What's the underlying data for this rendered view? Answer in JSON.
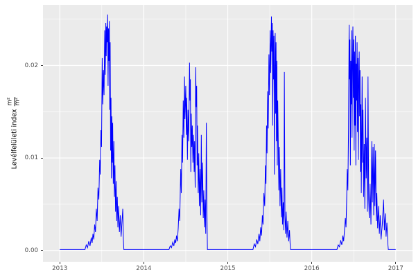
{
  "chart_data": {
    "type": "line",
    "title": "",
    "xlabel": "",
    "ylabel_text": "Levélfelületi index",
    "ylabel_unit_numerator": "m²",
    "ylabel_unit_denominator": "m²",
    "line_color": "#0000FF",
    "panel_bg": "#EBEBEB",
    "grid_color": "#FFFFFF",
    "tick_label_color": "#4D4D4D",
    "legend": "none",
    "grid": "on",
    "x_axis": {
      "range": [
        2012.8,
        2017.2
      ],
      "ticks": [
        2013,
        2014,
        2015,
        2016,
        2017
      ],
      "tick_labels": [
        "2013",
        "2014",
        "2015",
        "2016",
        "2017"
      ],
      "minor_ticks": [
        2013.5,
        2014.5,
        2015.5,
        2016.5
      ]
    },
    "y_axis": {
      "range": [
        -0.00122,
        0.02655
      ],
      "ticks": [
        0.0,
        0.01,
        0.02
      ],
      "tick_labels": [
        "0.00",
        "0.01",
        "0.02"
      ],
      "minor_ticks": [
        0.005,
        0.015,
        0.025
      ]
    },
    "series": [
      {
        "name": "Levélfelületi index",
        "points": [
          [
            2013.0,
            0.0001
          ],
          [
            2013.3,
            0.0001
          ],
          [
            2013.315,
            0.0006
          ],
          [
            2013.33,
            0.0003
          ],
          [
            2013.345,
            0.001
          ],
          [
            2013.36,
            0.0005
          ],
          [
            2013.375,
            0.0014
          ],
          [
            2013.385,
            0.0008
          ],
          [
            2013.395,
            0.0018
          ],
          [
            2013.405,
            0.0012
          ],
          [
            2013.415,
            0.0028
          ],
          [
            2013.425,
            0.002
          ],
          [
            2013.435,
            0.0045
          ],
          [
            2013.445,
            0.0032
          ],
          [
            2013.455,
            0.0068
          ],
          [
            2013.465,
            0.0055
          ],
          [
            2013.475,
            0.0098
          ],
          [
            2013.482,
            0.0082
          ],
          [
            2013.49,
            0.013
          ],
          [
            2013.497,
            0.0112
          ],
          [
            2013.505,
            0.0208
          ],
          [
            2013.512,
            0.0158
          ],
          [
            2013.52,
            0.0195
          ],
          [
            2013.527,
            0.0168
          ],
          [
            2013.535,
            0.0238
          ],
          [
            2013.541,
            0.019
          ],
          [
            2013.548,
            0.0246
          ],
          [
            2013.553,
            0.021
          ],
          [
            2013.558,
            0.0242
          ],
          [
            2013.563,
            0.0225
          ],
          [
            2013.57,
            0.0255
          ],
          [
            2013.575,
            0.0178
          ],
          [
            2013.58,
            0.024
          ],
          [
            2013.585,
            0.0205
          ],
          [
            2013.59,
            0.0248
          ],
          [
            2013.595,
            0.0152
          ],
          [
            2013.6,
            0.0225
          ],
          [
            2013.605,
            0.0108
          ],
          [
            2013.61,
            0.0165
          ],
          [
            2013.615,
            0.0078
          ],
          [
            2013.62,
            0.0145
          ],
          [
            2013.625,
            0.0095
          ],
          [
            2013.63,
            0.0138
          ],
          [
            2013.637,
            0.0072
          ],
          [
            2013.644,
            0.0118
          ],
          [
            2013.65,
            0.0058
          ],
          [
            2013.657,
            0.0092
          ],
          [
            2013.664,
            0.0042
          ],
          [
            2013.671,
            0.0075
          ],
          [
            2013.678,
            0.0032
          ],
          [
            2013.685,
            0.0058
          ],
          [
            2013.692,
            0.0025
          ],
          [
            2013.7,
            0.0048
          ],
          [
            2013.71,
            0.002
          ],
          [
            2013.72,
            0.0038
          ],
          [
            2013.73,
            0.0015
          ],
          [
            2013.74,
            0.003
          ],
          [
            2013.75,
            0.0045
          ],
          [
            2013.757,
            0.0012
          ],
          [
            2013.763,
            0.0001
          ],
          [
            2014.3,
            0.0001
          ],
          [
            2014.315,
            0.0005
          ],
          [
            2014.33,
            0.0003
          ],
          [
            2014.345,
            0.0009
          ],
          [
            2014.358,
            0.0005
          ],
          [
            2014.37,
            0.0012
          ],
          [
            2014.38,
            0.0008
          ],
          [
            2014.39,
            0.0016
          ],
          [
            2014.4,
            0.001
          ],
          [
            2014.41,
            0.0024
          ],
          [
            2014.42,
            0.0045
          ],
          [
            2014.428,
            0.0032
          ],
          [
            2014.44,
            0.0088
          ],
          [
            2014.447,
            0.0062
          ],
          [
            2014.455,
            0.0125
          ],
          [
            2014.462,
            0.0095
          ],
          [
            2014.47,
            0.0162
          ],
          [
            2014.477,
            0.0122
          ],
          [
            2014.485,
            0.0188
          ],
          [
            2014.49,
            0.0142
          ],
          [
            2014.5,
            0.0178
          ],
          [
            2014.506,
            0.0125
          ],
          [
            2014.512,
            0.0165
          ],
          [
            2014.52,
            0.0098
          ],
          [
            2014.527,
            0.0152
          ],
          [
            2014.535,
            0.0118
          ],
          [
            2014.545,
            0.0203
          ],
          [
            2014.55,
            0.0162
          ],
          [
            2014.555,
            0.0185
          ],
          [
            2014.56,
            0.0085
          ],
          [
            2014.565,
            0.0148
          ],
          [
            2014.572,
            0.0112
          ],
          [
            2014.578,
            0.0135
          ],
          [
            2014.585,
            0.0095
          ],
          [
            2014.592,
            0.0125
          ],
          [
            2014.6,
            0.0085
          ],
          [
            2014.605,
            0.0118
          ],
          [
            2014.612,
            0.0068
          ],
          [
            2014.618,
            0.0198
          ],
          [
            2014.625,
            0.0155
          ],
          [
            2014.63,
            0.0178
          ],
          [
            2014.635,
            0.0092
          ],
          [
            2014.64,
            0.0135
          ],
          [
            2014.648,
            0.0062
          ],
          [
            2014.655,
            0.0105
          ],
          [
            2014.662,
            0.0048
          ],
          [
            2014.67,
            0.0088
          ],
          [
            2014.678,
            0.0038
          ],
          [
            2014.685,
            0.0125
          ],
          [
            2014.692,
            0.0052
          ],
          [
            2014.7,
            0.0095
          ],
          [
            2014.708,
            0.0035
          ],
          [
            2014.715,
            0.0065
          ],
          [
            2014.722,
            0.0025
          ],
          [
            2014.73,
            0.0055
          ],
          [
            2014.738,
            0.0018
          ],
          [
            2014.745,
            0.0138
          ],
          [
            2014.752,
            0.0042
          ],
          [
            2014.758,
            0.0001
          ],
          [
            2015.3,
            0.0001
          ],
          [
            2015.315,
            0.0007
          ],
          [
            2015.33,
            0.0004
          ],
          [
            2015.345,
            0.0012
          ],
          [
            2015.358,
            0.0007
          ],
          [
            2015.372,
            0.0018
          ],
          [
            2015.382,
            0.001
          ],
          [
            2015.392,
            0.0025
          ],
          [
            2015.402,
            0.0016
          ],
          [
            2015.412,
            0.0038
          ],
          [
            2015.42,
            0.0028
          ],
          [
            2015.43,
            0.0062
          ],
          [
            2015.44,
            0.0048
          ],
          [
            2015.448,
            0.0092
          ],
          [
            2015.455,
            0.0072
          ],
          [
            2015.462,
            0.0135
          ],
          [
            2015.468,
            0.0105
          ],
          [
            2015.475,
            0.0172
          ],
          [
            2015.482,
            0.0132
          ],
          [
            2015.49,
            0.0212
          ],
          [
            2015.497,
            0.0168
          ],
          [
            2015.505,
            0.0238
          ],
          [
            2015.512,
            0.0192
          ],
          [
            2015.52,
            0.0253
          ],
          [
            2015.525,
            0.0215
          ],
          [
            2015.53,
            0.0246
          ],
          [
            2015.535,
            0.0135
          ],
          [
            2015.54,
            0.0238
          ],
          [
            2015.545,
            0.0185
          ],
          [
            2015.55,
            0.0232
          ],
          [
            2015.555,
            0.0082
          ],
          [
            2015.56,
            0.0198
          ],
          [
            2015.565,
            0.0235
          ],
          [
            2015.57,
            0.0148
          ],
          [
            2015.575,
            0.0225
          ],
          [
            2015.58,
            0.0118
          ],
          [
            2015.585,
            0.0205
          ],
          [
            2015.59,
            0.0092
          ],
          [
            2015.595,
            0.0162
          ],
          [
            2015.6,
            0.0128
          ],
          [
            2015.608,
            0.0065
          ],
          [
            2015.615,
            0.0112
          ],
          [
            2015.622,
            0.0048
          ],
          [
            2015.63,
            0.0088
          ],
          [
            2015.638,
            0.0036
          ],
          [
            2015.645,
            0.0068
          ],
          [
            2015.652,
            0.0028
          ],
          [
            2015.66,
            0.0052
          ],
          [
            2015.668,
            0.0022
          ],
          [
            2015.674,
            0.0193
          ],
          [
            2015.681,
            0.0038
          ],
          [
            2015.688,
            0.0018
          ],
          [
            2015.695,
            0.0042
          ],
          [
            2015.705,
            0.0014
          ],
          [
            2015.715,
            0.0032
          ],
          [
            2015.725,
            0.001
          ],
          [
            2015.735,
            0.0022
          ],
          [
            2015.742,
            0.0008
          ],
          [
            2015.748,
            0.0001
          ],
          [
            2016.3,
            0.0001
          ],
          [
            2016.315,
            0.0006
          ],
          [
            2016.33,
            0.0004
          ],
          [
            2016.345,
            0.0011
          ],
          [
            2016.358,
            0.0006
          ],
          [
            2016.37,
            0.0016
          ],
          [
            2016.38,
            0.001
          ],
          [
            2016.39,
            0.0022
          ],
          [
            2016.4,
            0.0035
          ],
          [
            2016.408,
            0.0025
          ],
          [
            2016.415,
            0.0052
          ],
          [
            2016.422,
            0.0088
          ],
          [
            2016.43,
            0.0065
          ],
          [
            2016.438,
            0.0132
          ],
          [
            2016.445,
            0.0244
          ],
          [
            2016.45,
            0.0185
          ],
          [
            2016.455,
            0.0228
          ],
          [
            2016.46,
            0.0092
          ],
          [
            2016.465,
            0.0205
          ],
          [
            2016.47,
            0.0158
          ],
          [
            2016.475,
            0.0238
          ],
          [
            2016.48,
            0.0122
          ],
          [
            2016.485,
            0.0202
          ],
          [
            2016.49,
            0.0242
          ],
          [
            2016.495,
            0.0165
          ],
          [
            2016.5,
            0.0228
          ],
          [
            2016.505,
            0.0108
          ],
          [
            2016.51,
            0.0215
          ],
          [
            2016.515,
            0.0135
          ],
          [
            2016.52,
            0.0232
          ],
          [
            2016.525,
            0.0092
          ],
          [
            2016.53,
            0.0202
          ],
          [
            2016.535,
            0.0162
          ],
          [
            2016.54,
            0.0225
          ],
          [
            2016.545,
            0.0128
          ],
          [
            2016.55,
            0.0208
          ],
          [
            2016.555,
            0.0098
          ],
          [
            2016.56,
            0.0185
          ],
          [
            2016.565,
            0.0215
          ],
          [
            2016.57,
            0.0145
          ],
          [
            2016.575,
            0.0195
          ],
          [
            2016.58,
            0.0085
          ],
          [
            2016.585,
            0.0158
          ],
          [
            2016.59,
            0.0062
          ],
          [
            2016.595,
            0.0125
          ],
          [
            2016.6,
            0.0188
          ],
          [
            2016.605,
            0.0095
          ],
          [
            2016.61,
            0.0152
          ],
          [
            2016.618,
            0.0058
          ],
          [
            2016.625,
            0.0115
          ],
          [
            2016.632,
            0.0045
          ],
          [
            2016.64,
            0.0165
          ],
          [
            2016.648,
            0.0078
          ],
          [
            2016.655,
            0.0122
          ],
          [
            2016.662,
            0.0042
          ],
          [
            2016.67,
            0.0188
          ],
          [
            2016.678,
            0.0055
          ],
          [
            2016.685,
            0.0035
          ],
          [
            2016.695,
            0.0072
          ],
          [
            2016.705,
            0.0028
          ],
          [
            2016.715,
            0.0118
          ],
          [
            2016.722,
            0.0052
          ],
          [
            2016.73,
            0.0112
          ],
          [
            2016.738,
            0.0038
          ],
          [
            2016.745,
            0.0115
          ],
          [
            2016.752,
            0.0048
          ],
          [
            2016.76,
            0.0108
          ],
          [
            2016.768,
            0.0032
          ],
          [
            2016.775,
            0.0062
          ],
          [
            2016.785,
            0.0024
          ],
          [
            2016.795,
            0.0048
          ],
          [
            2016.805,
            0.0018
          ],
          [
            2016.815,
            0.0038
          ],
          [
            2016.825,
            0.0012
          ],
          [
            2016.84,
            0.0028
          ],
          [
            2016.855,
            0.0055
          ],
          [
            2016.865,
            0.0022
          ],
          [
            2016.875,
            0.004
          ],
          [
            2016.885,
            0.0015
          ],
          [
            2016.895,
            0.003
          ],
          [
            2016.905,
            0.0008
          ],
          [
            2016.912,
            0.0001
          ],
          [
            2017.0,
            0.0001
          ]
        ]
      }
    ]
  }
}
